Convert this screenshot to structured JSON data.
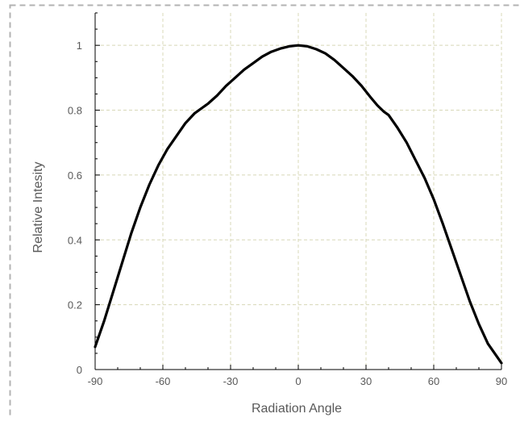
{
  "chart_data": {
    "type": "line",
    "title": "",
    "xlabel": "Radiation Angle",
    "ylabel": "Relative Intesity",
    "xlim": [
      -90,
      90
    ],
    "ylim": [
      0,
      1.1
    ],
    "x_ticks": [
      "-90",
      "-60",
      "-30",
      "0",
      "30",
      "60",
      "90"
    ],
    "y_ticks": [
      "0",
      "0.2",
      "0.4",
      "0.6",
      "0.8",
      "1"
    ],
    "grid": true,
    "legend": "none",
    "series": [
      {
        "color": "#000000",
        "points": [
          [
            -90,
            0.07
          ],
          [
            -86,
            0.15
          ],
          [
            -82,
            0.24
          ],
          [
            -78,
            0.33
          ],
          [
            -74,
            0.42
          ],
          [
            -70,
            0.5
          ],
          [
            -66,
            0.57
          ],
          [
            -62,
            0.63
          ],
          [
            -58,
            0.68
          ],
          [
            -54,
            0.72
          ],
          [
            -50,
            0.76
          ],
          [
            -46,
            0.79
          ],
          [
            -42,
            0.81
          ],
          [
            -40,
            0.82
          ],
          [
            -36,
            0.845
          ],
          [
            -32,
            0.875
          ],
          [
            -28,
            0.9
          ],
          [
            -24,
            0.925
          ],
          [
            -20,
            0.945
          ],
          [
            -16,
            0.965
          ],
          [
            -12,
            0.98
          ],
          [
            -8,
            0.99
          ],
          [
            -4,
            0.997
          ],
          [
            0,
            1.0
          ],
          [
            4,
            0.997
          ],
          [
            8,
            0.988
          ],
          [
            12,
            0.975
          ],
          [
            16,
            0.955
          ],
          [
            20,
            0.93
          ],
          [
            24,
            0.905
          ],
          [
            28,
            0.875
          ],
          [
            32,
            0.84
          ],
          [
            35,
            0.815
          ],
          [
            38,
            0.795
          ],
          [
            40,
            0.785
          ],
          [
            44,
            0.745
          ],
          [
            48,
            0.7
          ],
          [
            52,
            0.645
          ],
          [
            56,
            0.59
          ],
          [
            60,
            0.525
          ],
          [
            64,
            0.45
          ],
          [
            68,
            0.37
          ],
          [
            72,
            0.29
          ],
          [
            76,
            0.21
          ],
          [
            80,
            0.14
          ],
          [
            84,
            0.08
          ],
          [
            88,
            0.04
          ],
          [
            90,
            0.02
          ]
        ]
      }
    ]
  },
  "colors": {
    "frame_border": "#b3b3b3",
    "grid": "#d8d8b8",
    "axis": "#000000",
    "line": "#000000"
  }
}
